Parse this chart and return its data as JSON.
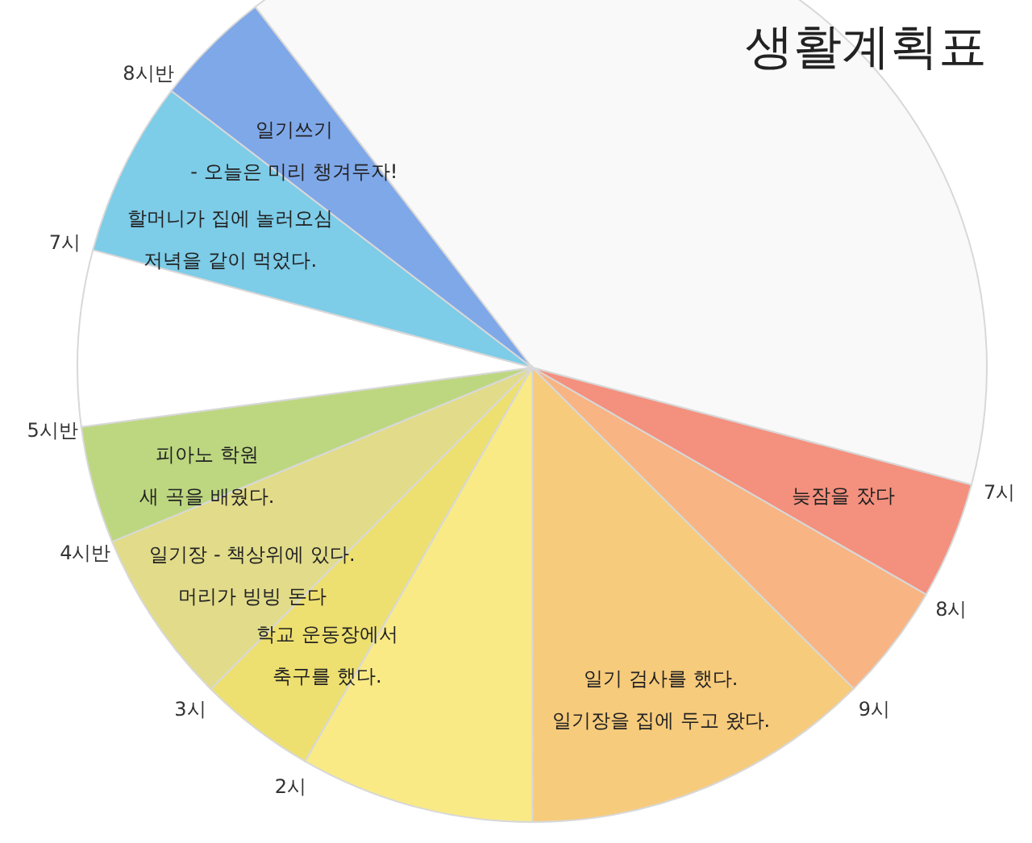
{
  "chart_data": {
    "type": "pie",
    "title": "생활계획표",
    "categories": [
      null,
      "늦잠을 잤다",
      null,
      "일기 검사를 했다.\n일기장을 집에 두고 왔다.",
      null,
      "학교 운동장에서\n축구를 했다.",
      "일기장 - 책상위에 있다.\n머리가 빙빙 돈다",
      "피아노 학원\n새 곡을 배웠다.",
      null,
      "할머니가 집에 놀러오심\n저녁을 같이 먹었다.",
      "일기쓰기\n- 오늘은 미리 챙겨두자!"
    ],
    "values": [
      39.57,
      4.17,
      4.17,
      12.5,
      8.33,
      4.17,
      6.25,
      4.17,
      6.25,
      6.25,
      4.17
    ],
    "colors": [
      "#f9f9f9",
      "#f4907e",
      "#f8b482",
      "#f7cb7c",
      "#f9ea86",
      "#eee070",
      "#e2dc8a",
      "#bdd780",
      "#ffffff",
      "#7dcce8",
      "#7fa8e9"
    ],
    "annotations": [
      "7시",
      "8시",
      "9시",
      "2시",
      "3시",
      "4시반",
      "5시반",
      "7시",
      "8시반"
    ]
  }
}
